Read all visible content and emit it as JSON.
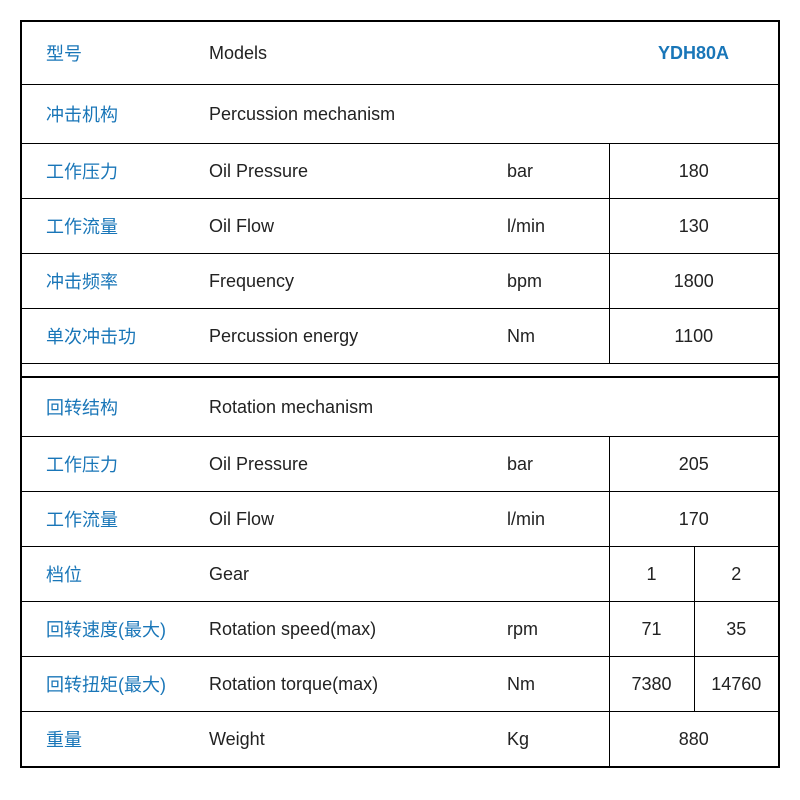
{
  "table": {
    "border_color": "#000000",
    "cn_color": "#1976b8",
    "text_color": "#222222",
    "model_color": "#1976b8",
    "background": "#ffffff",
    "font_size": 18,
    "header": {
      "cn": "型号",
      "en": "Models",
      "value": "YDH80A"
    },
    "section1": {
      "cn": "冲击机构",
      "en": "Percussion mechanism"
    },
    "percussion": [
      {
        "cn": "工作压力",
        "en": "Oil Pressure",
        "unit": "bar",
        "value": "180"
      },
      {
        "cn": "工作流量",
        "en": "Oil Flow",
        "unit": "l/min",
        "value": "130"
      },
      {
        "cn": "冲击频率",
        "en": "Frequency",
        "unit": "bpm",
        "value": "1800"
      },
      {
        "cn": "单次冲击功",
        "en": "Percussion energy",
        "unit": "Nm",
        "value": "1100"
      }
    ],
    "section2": {
      "cn": "回转结构",
      "en": "Rotation mechanism"
    },
    "rotation_simple": [
      {
        "cn": "工作压力",
        "en": "Oil Pressure",
        "unit": "bar",
        "value": "205"
      },
      {
        "cn": "工作流量",
        "en": "Oil Flow",
        "unit": "l/min",
        "value": "170"
      }
    ],
    "gear": {
      "cn": "档位",
      "en": "Gear",
      "v1": "1",
      "v2": "2"
    },
    "rotation_double": [
      {
        "cn": "回转速度(最大)",
        "en": "Rotation speed(max)",
        "unit": "rpm",
        "v1": "71",
        "v2": "35"
      },
      {
        "cn": "回转扭矩(最大)",
        "en": "Rotation torque(max)",
        "unit": "Nm",
        "v1": "7380",
        "v2": "14760"
      }
    ],
    "weight": {
      "cn": "重量",
      "en": "Weight",
      "unit": "Kg",
      "value": "880"
    }
  }
}
